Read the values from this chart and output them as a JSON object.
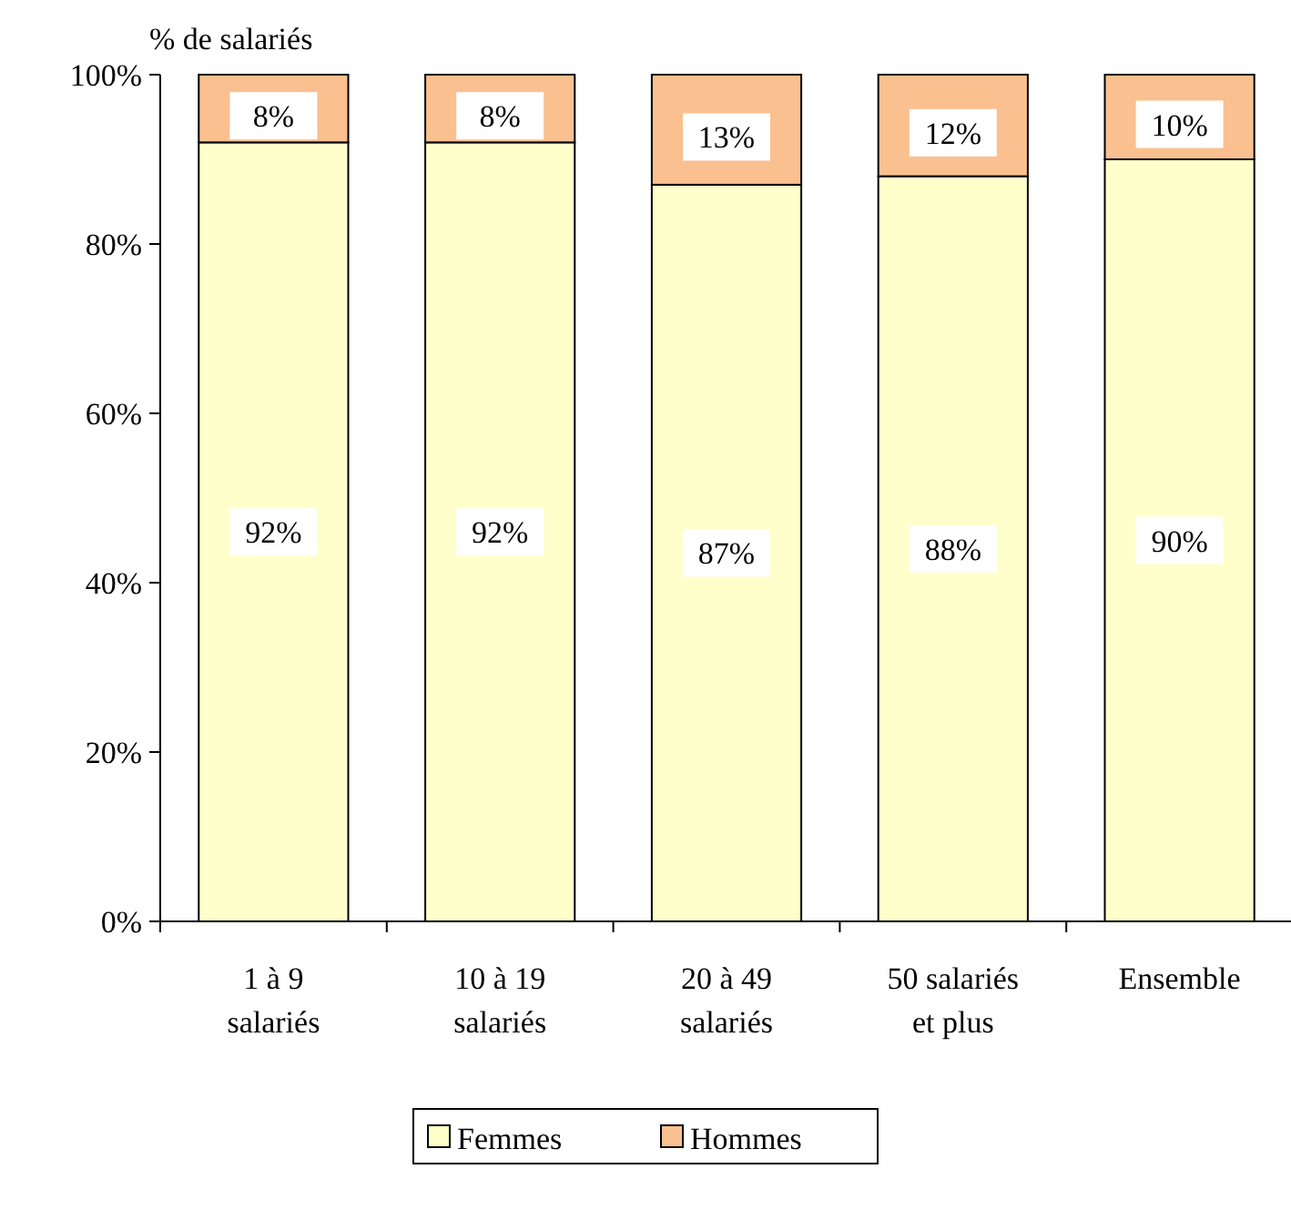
{
  "chart_data": {
    "type": "bar",
    "stacked": true,
    "ylabel": "% de salariés",
    "categories": [
      "1 à 9\nsalariés",
      "10 à 19\nsalariés",
      "20 à 49\nsalariés",
      "50 salariés\net plus",
      "Ensemble"
    ],
    "series": [
      {
        "name": "Femmes",
        "color": "#ffffcc",
        "values": [
          92,
          92,
          87,
          88,
          90
        ],
        "value_labels": [
          "92%",
          "92%",
          "87%",
          "88%",
          "90%"
        ]
      },
      {
        "name": "Hommes",
        "color": "#fac090",
        "values": [
          8,
          8,
          13,
          12,
          10
        ],
        "value_labels": [
          "8%",
          "8%",
          "13%",
          "12%",
          "10%"
        ]
      }
    ],
    "ylim": [
      0,
      100
    ],
    "yticks": [
      {
        "value": 0,
        "label": "0%"
      },
      {
        "value": 20,
        "label": "20%"
      },
      {
        "value": 40,
        "label": "40%"
      },
      {
        "value": 60,
        "label": "60%"
      },
      {
        "value": 80,
        "label": "80%"
      },
      {
        "value": 100,
        "label": "100%"
      }
    ],
    "legend": "bottom",
    "grid": false
  }
}
